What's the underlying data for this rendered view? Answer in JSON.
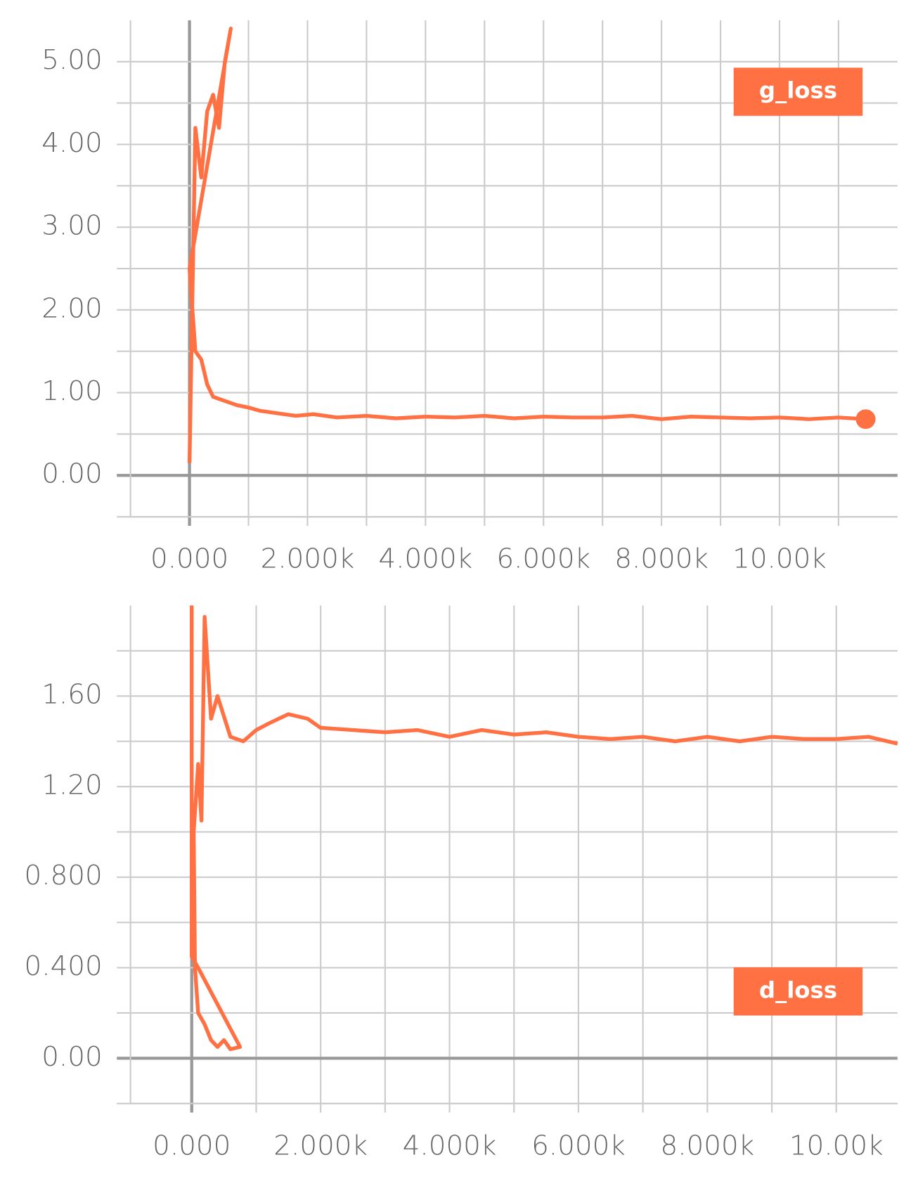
{
  "chart_data": [
    {
      "type": "line",
      "x": [
        0,
        100,
        200,
        300,
        400,
        500,
        600,
        700,
        0,
        100,
        200,
        300,
        400,
        600,
        800,
        1000,
        1200,
        1500,
        1800,
        2100,
        2500,
        3000,
        3500,
        4000,
        4500,
        5000,
        5500,
        6000,
        6500,
        7000,
        7500,
        8000,
        8500,
        9000,
        9500,
        10000,
        10500,
        11000,
        11460
      ],
      "series": [
        {
          "name": "g_loss",
          "color": "#ff7043",
          "values": [
            0.15,
            4.2,
            3.6,
            4.4,
            4.6,
            4.2,
            5.0,
            5.4,
            2.5,
            1.5,
            1.4,
            1.1,
            0.95,
            0.9,
            0.85,
            0.82,
            0.78,
            0.75,
            0.72,
            0.74,
            0.7,
            0.72,
            0.69,
            0.71,
            0.7,
            0.72,
            0.69,
            0.71,
            0.7,
            0.7,
            0.72,
            0.68,
            0.71,
            0.7,
            0.69,
            0.7,
            0.68,
            0.7,
            0.68
          ]
        }
      ],
      "xlim": [
        -1000,
        12000
      ],
      "ylim": [
        -0.5,
        5.5
      ],
      "xticks": [
        {
          "value": 0,
          "label": "0.000"
        },
        {
          "value": 2000,
          "label": "2.000k"
        },
        {
          "value": 4000,
          "label": "4.000k"
        },
        {
          "value": 6000,
          "label": "6.000k"
        },
        {
          "value": 8000,
          "label": "8.000k"
        },
        {
          "value": 10000,
          "label": "10.00k"
        }
      ],
      "yticks": [
        {
          "value": 0,
          "label": "0.00"
        },
        {
          "value": 1,
          "label": "1.00"
        },
        {
          "value": 2,
          "label": "2.00"
        },
        {
          "value": 3,
          "label": "3.00"
        },
        {
          "value": 4,
          "label": "4.00"
        },
        {
          "value": 5,
          "label": "5.00"
        }
      ],
      "xgrid": [
        0,
        1000,
        2000,
        3000,
        4000,
        5000,
        6000,
        7000,
        8000,
        9000,
        10000,
        11000
      ],
      "ygrid": [
        -0.5,
        0,
        0.5,
        1,
        1.5,
        2,
        2.5,
        3,
        3.5,
        4,
        4.5,
        5
      ],
      "grid": true,
      "legend": "upper right",
      "end_marker": true
    },
    {
      "type": "line",
      "x": [
        0,
        0,
        100,
        750,
        600,
        500,
        400,
        300,
        200,
        100,
        50,
        30,
        100,
        150,
        200,
        300,
        400,
        600,
        800,
        1000,
        1200,
        1500,
        1800,
        2000,
        2500,
        3000,
        3500,
        4000,
        4500,
        5000,
        5500,
        6000,
        6500,
        7000,
        7500,
        8000,
        8500,
        9000,
        9500,
        10000,
        10500,
        10950
      ],
      "series": [
        {
          "name": "d_loss",
          "color": "#ff7043",
          "values": [
            2.0,
            0.45,
            0.4,
            0.05,
            0.04,
            0.08,
            0.05,
            0.08,
            0.15,
            0.2,
            0.4,
            1.0,
            1.3,
            1.05,
            1.95,
            1.5,
            1.6,
            1.42,
            1.4,
            1.45,
            1.48,
            1.52,
            1.5,
            1.46,
            1.45,
            1.44,
            1.45,
            1.42,
            1.45,
            1.43,
            1.44,
            1.42,
            1.41,
            1.42,
            1.4,
            1.42,
            1.4,
            1.42,
            1.41,
            1.41,
            1.42,
            1.39
          ]
        }
      ],
      "xlim": [
        -950,
        10950
      ],
      "ylim": [
        -0.2,
        2.0
      ],
      "xticks": [
        {
          "value": 0,
          "label": "0.000"
        },
        {
          "value": 2000,
          "label": "2.000k"
        },
        {
          "value": 4000,
          "label": "4.000k"
        },
        {
          "value": 6000,
          "label": "6.000k"
        },
        {
          "value": 8000,
          "label": "8.000k"
        },
        {
          "value": 10000,
          "label": "10.00k"
        }
      ],
      "yticks": [
        {
          "value": 0,
          "label": "0.00"
        },
        {
          "value": 0.4,
          "label": "0.400"
        },
        {
          "value": 0.8,
          "label": "0.800"
        },
        {
          "value": 1.2,
          "label": "1.20"
        },
        {
          "value": 1.6,
          "label": "1.60"
        }
      ],
      "xgrid": [
        0,
        1000,
        2000,
        3000,
        4000,
        5000,
        6000,
        7000,
        8000,
        9000,
        10000
      ],
      "ygrid": [
        -0.2,
        0,
        0.2,
        0.4,
        0.6,
        0.8,
        1,
        1.2,
        1.4,
        1.6,
        1.8
      ],
      "grid": true,
      "legend": "lower right",
      "end_marker": false
    }
  ]
}
